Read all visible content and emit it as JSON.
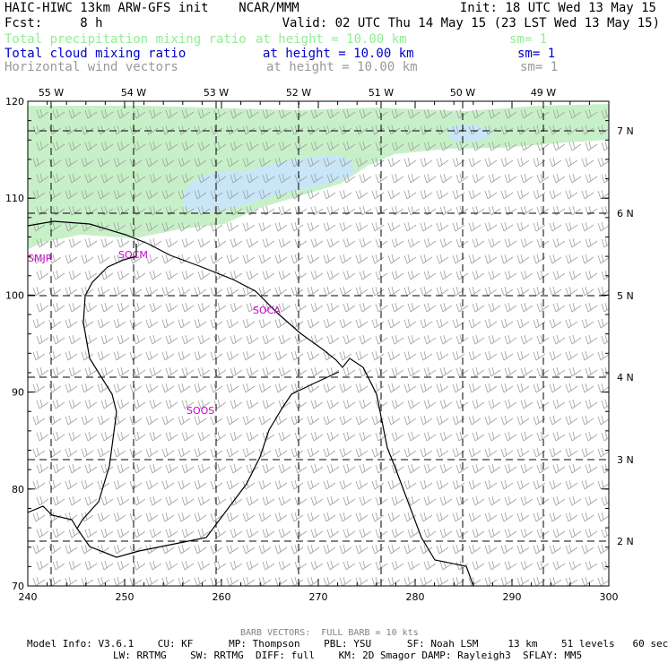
{
  "header": {
    "line1_left": "HAIC-HIWC 13km ARW-GFS init    NCAR/MMM",
    "line1_right": "Init: 18 UTC Wed 13 May 15",
    "line2_left": "Fcst:     8 h",
    "line2_right": "Valid: 02 UTC Thu 14 May 15 (23 LST Wed 13 May 15)",
    "fields": [
      {
        "name": "Total precipitation mixing ratio",
        "height": "at height = 10.00 km",
        "sm": "sm= 1",
        "color": "#90ee90"
      },
      {
        "name": "Total cloud mixing ratio",
        "height": "at height = 10.00 km",
        "sm": "sm= 1",
        "color": "#0000cc"
      },
      {
        "name": "Horizontal wind vectors",
        "height": "at height = 10.00 km",
        "sm": "sm= 1",
        "color": "#999999"
      }
    ]
  },
  "map": {
    "x_ticks": [
      "240",
      "250",
      "260",
      "270",
      "280",
      "290",
      "300"
    ],
    "y_ticks": [
      "70",
      "80",
      "90",
      "100",
      "110",
      "120"
    ],
    "lon_labels": [
      "55 W",
      "54 W",
      "53 W",
      "52 W",
      "51 W",
      "50 W",
      "49 W"
    ],
    "lat_labels": [
      "7 N",
      "6 N",
      "5 N",
      "4 N",
      "3 N",
      "2 N"
    ],
    "stations": [
      "SMJP",
      "SOCM",
      "SOCA",
      "SOOS"
    ],
    "colors": {
      "precip": "#c8f0c8",
      "cloud": "#c8e6f8",
      "barb": "#a0a0a0",
      "coast": "#000000",
      "station": "#cc00cc"
    }
  },
  "footer": {
    "barb_note": "BARB VECTORS:  FULL BARB = 10 kts",
    "model_line1": "Model Info: V3.6.1    CU: KF      MP: Thompson    PBL: YSU      SF: Noah LSM     13 km    51 levels   60 sec",
    "model_line2": "LW: RRTMG    SW: RRTMG  DIFF: full    KM: 2D Smagor DAMP: Rayleigh3  SFLAY: MM5"
  }
}
